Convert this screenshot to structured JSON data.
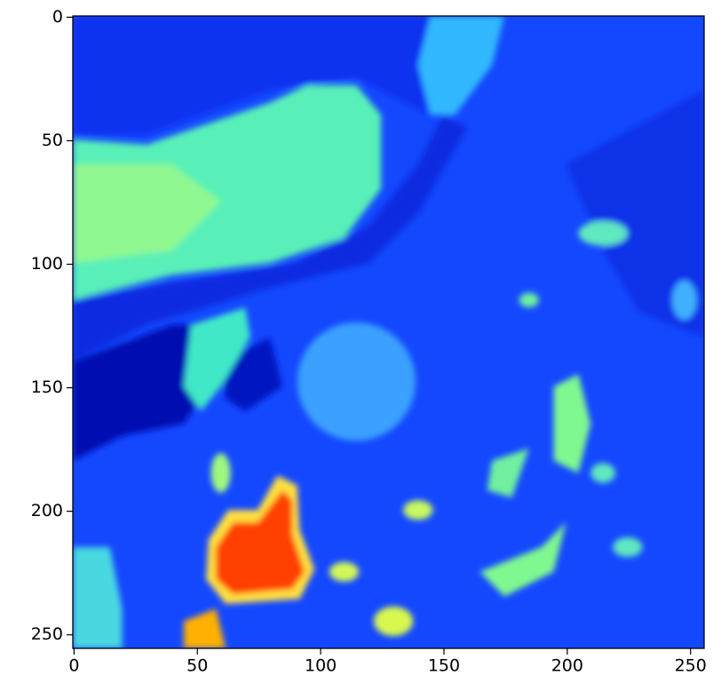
{
  "chart_data": {
    "type": "image",
    "xlim": [
      -0.5,
      255.5
    ],
    "ylim": [
      255.5,
      -0.5
    ],
    "xticks": [
      0,
      50,
      100,
      150,
      200,
      250
    ],
    "yticks": [
      0,
      50,
      100,
      150,
      200,
      250
    ]
  }
}
